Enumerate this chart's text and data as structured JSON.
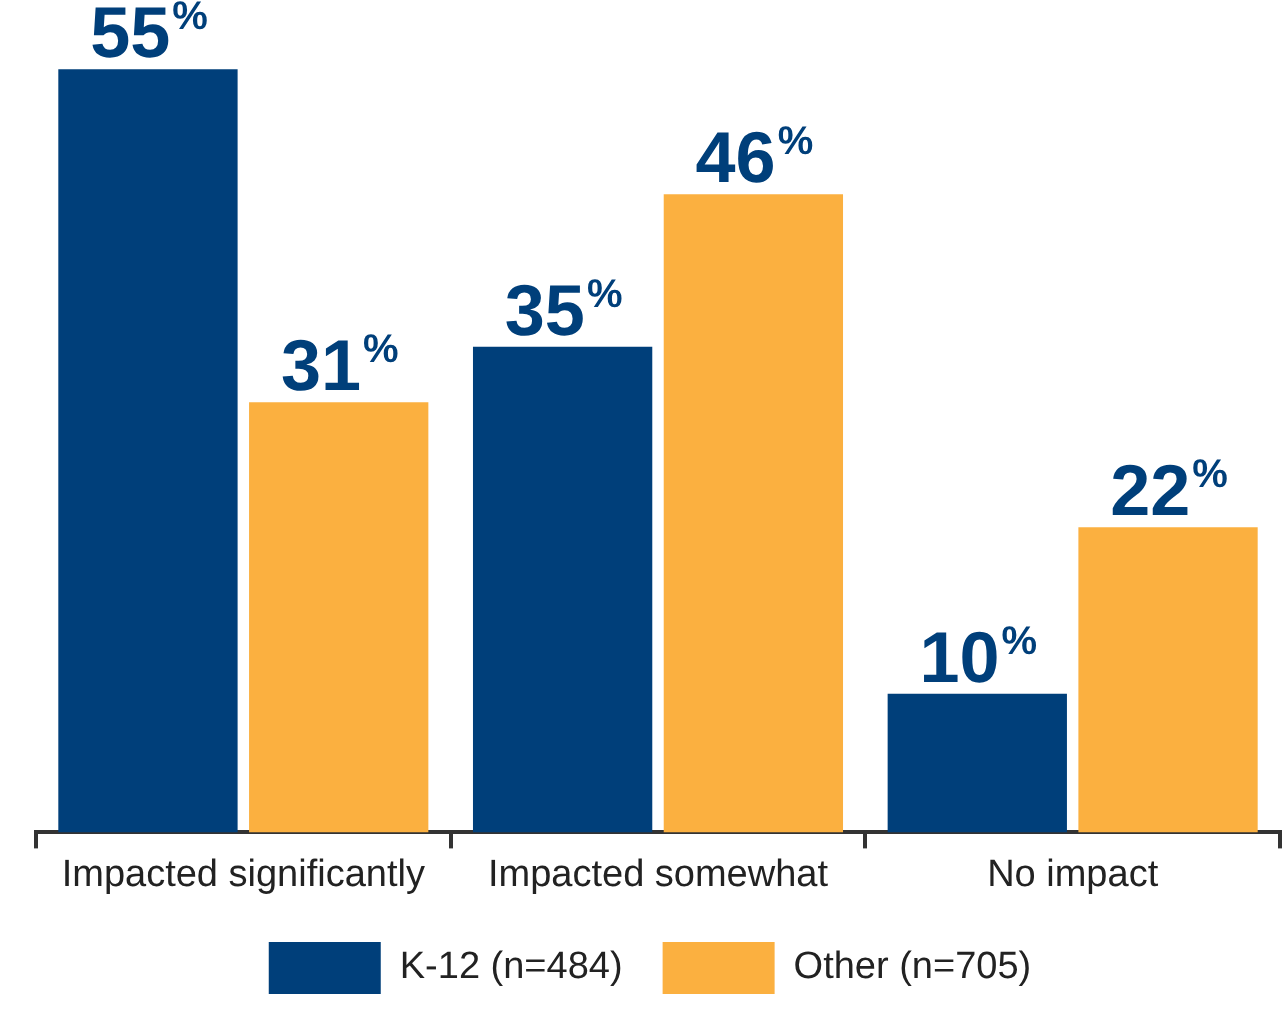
{
  "chart_data": {
    "type": "bar",
    "categories": [
      "Impacted significantly",
      "Impacted somewhat",
      "No impact"
    ],
    "series": [
      {
        "name": "K-12 (n=484)",
        "color": "#003f7a",
        "values": [
          55,
          35,
          10
        ],
        "value_labels": [
          "55%",
          "35%",
          "10%"
        ]
      },
      {
        "name": "Other (n=705)",
        "color": "#fbb040",
        "values": [
          31,
          46,
          22
        ],
        "value_labels": [
          "31%",
          "46%",
          "22%"
        ]
      }
    ],
    "legend": "bottom"
  }
}
